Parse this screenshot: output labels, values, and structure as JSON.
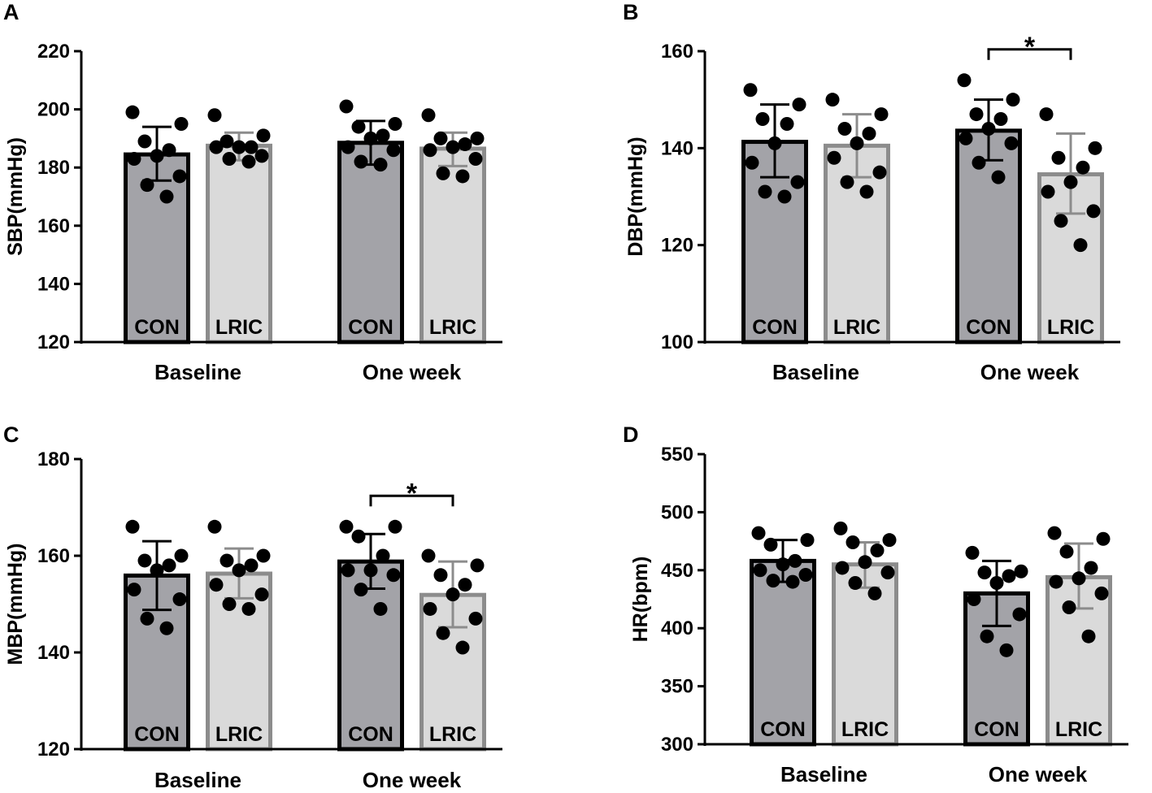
{
  "figure": {
    "panels": [
      "A",
      "B",
      "C",
      "D"
    ]
  },
  "chart_data": [
    {
      "panel": "A",
      "type": "bar",
      "ylabel": "SBP(mmHg)",
      "ylim": [
        120,
        220
      ],
      "yticks": [
        120,
        140,
        160,
        180,
        200,
        220
      ],
      "groups": [
        "Baseline",
        "One week"
      ],
      "bars": [
        {
          "group": "Baseline",
          "label": "CON",
          "mean": 184.5,
          "sd_low": 175.5,
          "sd_high": 194,
          "points": [
            199,
            195,
            189,
            186,
            184,
            183,
            177,
            174,
            170
          ]
        },
        {
          "group": "Baseline",
          "label": "LRIC",
          "mean": 187.5,
          "sd_low": 182.5,
          "sd_high": 192,
          "points": [
            198,
            191,
            189,
            187,
            187,
            187,
            184,
            183,
            182
          ]
        },
        {
          "group": "One week",
          "label": "CON",
          "mean": 188.5,
          "sd_low": 181,
          "sd_high": 196,
          "points": [
            201,
            195,
            194,
            191,
            190,
            187,
            186,
            182,
            181
          ]
        },
        {
          "group": "One week",
          "label": "LRIC",
          "mean": 186.5,
          "sd_low": 180.5,
          "sd_high": 192,
          "points": [
            198,
            190,
            190,
            188,
            187,
            186,
            183,
            178,
            177
          ]
        }
      ],
      "significance": []
    },
    {
      "panel": "B",
      "type": "bar",
      "ylabel": "DBP(mmHg)",
      "ylim": [
        100,
        160
      ],
      "yticks": [
        100,
        120,
        140,
        160
      ],
      "groups": [
        "Baseline",
        "One week"
      ],
      "bars": [
        {
          "group": "Baseline",
          "label": "CON",
          "mean": 141.3,
          "sd_low": 134,
          "sd_high": 149,
          "points": [
            152,
            149,
            146,
            145,
            141,
            137,
            133,
            131,
            130
          ]
        },
        {
          "group": "Baseline",
          "label": "LRIC",
          "mean": 140.5,
          "sd_low": 134,
          "sd_high": 147,
          "points": [
            150,
            147,
            144,
            143,
            141,
            138,
            135,
            133,
            131
          ]
        },
        {
          "group": "One week",
          "label": "CON",
          "mean": 143.6,
          "sd_low": 137.5,
          "sd_high": 150,
          "points": [
            154,
            150,
            147,
            146,
            144,
            142,
            141,
            137,
            134
          ]
        },
        {
          "group": "One week",
          "label": "LRIC",
          "mean": 134.6,
          "sd_low": 126.5,
          "sd_high": 143,
          "points": [
            147,
            140,
            138,
            136,
            133,
            131,
            127,
            125,
            120
          ]
        }
      ],
      "significance": [
        {
          "from": 2,
          "to": 3,
          "label": "*"
        }
      ]
    },
    {
      "panel": "C",
      "type": "bar",
      "ylabel": "MBP(mmHg)",
      "ylim": [
        120,
        180
      ],
      "yticks": [
        120,
        140,
        160,
        180
      ],
      "groups": [
        "Baseline",
        "One week"
      ],
      "bars": [
        {
          "group": "Baseline",
          "label": "CON",
          "mean": 155.9,
          "sd_low": 148.8,
          "sd_high": 163,
          "points": [
            166,
            160,
            159,
            158,
            157,
            153,
            151,
            147,
            145
          ]
        },
        {
          "group": "Baseline",
          "label": "LRIC",
          "mean": 156.3,
          "sd_low": 151.2,
          "sd_high": 161.5,
          "points": [
            166,
            160,
            159,
            158,
            157,
            154,
            152,
            150,
            149
          ]
        },
        {
          "group": "One week",
          "label": "CON",
          "mean": 158.8,
          "sd_low": 153.2,
          "sd_high": 164.5,
          "points": [
            166,
            166,
            164,
            160,
            157,
            157,
            156,
            153,
            149
          ]
        },
        {
          "group": "One week",
          "label": "LRIC",
          "mean": 151.9,
          "sd_low": 145.2,
          "sd_high": 158.8,
          "points": [
            160,
            158,
            156,
            154,
            152,
            149,
            147,
            144,
            141
          ]
        }
      ],
      "significance": [
        {
          "from": 2,
          "to": 3,
          "label": "*"
        }
      ]
    },
    {
      "panel": "D",
      "type": "bar",
      "ylabel": "HR(bpm)",
      "ylim": [
        300,
        550
      ],
      "yticks": [
        300,
        350,
        400,
        450,
        500,
        550
      ],
      "groups": [
        "Baseline",
        "One week"
      ],
      "bars": [
        {
          "group": "Baseline",
          "label": "CON",
          "mean": 458,
          "sd_low": 440,
          "sd_high": 476,
          "points": [
            482,
            476,
            472,
            458,
            455,
            450,
            446,
            441,
            440
          ]
        },
        {
          "group": "Baseline",
          "label": "LRIC",
          "mean": 455,
          "sd_low": 435,
          "sd_high": 474,
          "points": [
            486,
            476,
            474,
            467,
            457,
            452,
            448,
            439,
            430
          ]
        },
        {
          "group": "One week",
          "label": "CON",
          "mean": 430,
          "sd_low": 402,
          "sd_high": 458,
          "points": [
            465,
            449,
            448,
            445,
            439,
            425,
            412,
            393,
            381
          ]
        },
        {
          "group": "One week",
          "label": "LRIC",
          "mean": 444,
          "sd_low": 417,
          "sd_high": 473,
          "points": [
            482,
            477,
            466,
            452,
            443,
            440,
            430,
            418,
            393
          ]
        }
      ],
      "significance": []
    }
  ]
}
